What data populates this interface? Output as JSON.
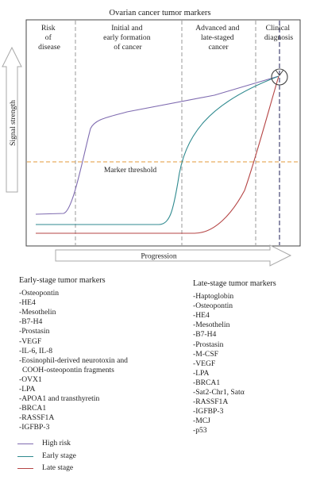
{
  "title": "Ovarian cancer tumor markers",
  "phases": {
    "risk": [
      "Risk",
      "of",
      "disease"
    ],
    "early": [
      "Initial and",
      "early formation",
      "of cancer"
    ],
    "advanced": [
      "Advanced and",
      "late-staged",
      "cancer"
    ],
    "clinical": [
      "Clinical",
      "diagnosis"
    ]
  },
  "threshold_label": "Marker threshold",
  "y_axis_label": "Signal strength",
  "x_axis_label": "Progression",
  "early_markers": {
    "title": "Early-stage tumor markers",
    "items": [
      "-Osteopontin",
      "-HE4",
      "-Mesothelin",
      "-B7-H4",
      "-Prostasin",
      "-VEGF",
      "-IL-6, IL-8",
      "-Eosinophil-derived neurotoxin and",
      "COOH-osteopontin fragments",
      "-OVX1",
      "-LPA",
      "-APOA1 and transthyretin",
      "-BRCA1",
      "-RASSF1A",
      "-IGFBP-3"
    ]
  },
  "late_markers": {
    "title": "Late-stage tumor markers",
    "items": [
      "-Haptoglobin",
      "-Osteopontin",
      "-HE4",
      "-Mesothelin",
      "-B7-H4",
      "-Prostasin",
      "-M-CSF",
      "-VEGF",
      "-LPA",
      "-BRCA1",
      "-Sat2-Chr1, Satα",
      "-RASSF1A",
      "-IGFBP-3",
      "-MCJ",
      "-p53"
    ]
  },
  "legend": [
    {
      "label": "High risk",
      "color": "#7f6bb0"
    },
    {
      "label": "Early stage",
      "color": "#2f8a8f"
    },
    {
      "label": "Late stage",
      "color": "#b54545"
    }
  ],
  "colors": {
    "threshold": "#e39a3a",
    "divider": "#9a9a9a",
    "diagnosis": "#333366",
    "frame": "#444444",
    "arrow": "#a8a8a8"
  }
}
